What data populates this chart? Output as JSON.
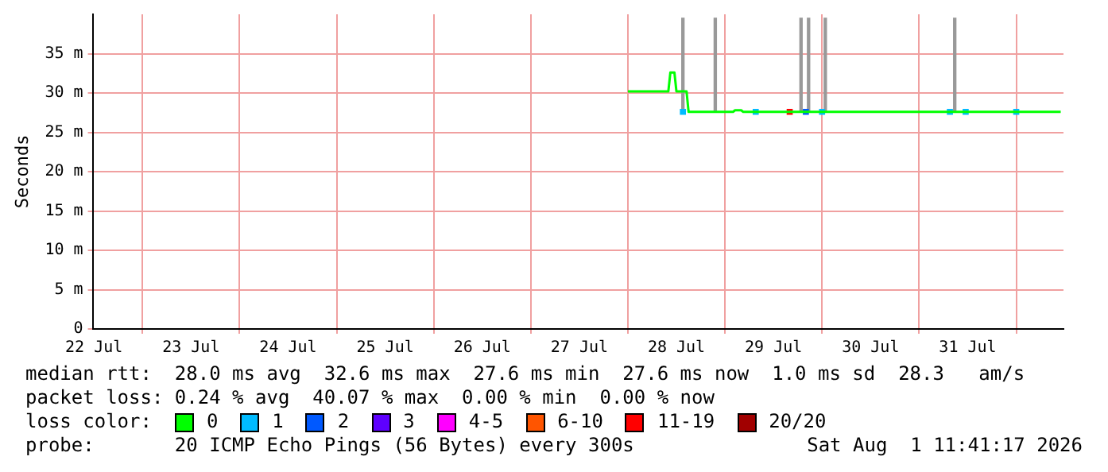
{
  "chart_data": {
    "type": "line",
    "ylabel": "Seconds",
    "legend_title": "loss color:",
    "legend": "bottom",
    "grid": true,
    "annotations": [
      "median rtt:  28.0 ms avg  32.6 ms max  27.6 ms min  27.6 ms now  1.0 ms sd  28.3   am/s",
      "packet loss: 0.24 % avg  40.07 % max  0.00 % min  0.00 % now",
      "probe:       20 ICMP Echo Pings (56 Bytes) every 300s",
      "Sat Aug  1 11:41:17 2026"
    ],
    "xlim": [
      "2026-07-22T11:41",
      "2026-08-01T11:41"
    ],
    "xticks": [
      {
        "value": "2026-07-22T12:00",
        "label": "22 Jul"
      },
      {
        "value": "2026-07-23T12:00",
        "label": "23 Jul"
      },
      {
        "value": "2026-07-24T12:00",
        "label": "24 Jul"
      },
      {
        "value": "2026-07-25T12:00",
        "label": "25 Jul"
      },
      {
        "value": "2026-07-26T12:00",
        "label": "26 Jul"
      },
      {
        "value": "2026-07-27T12:00",
        "label": "27 Jul"
      },
      {
        "value": "2026-07-28T12:00",
        "label": "28 Jul"
      },
      {
        "value": "2026-07-29T12:00",
        "label": "29 Jul"
      },
      {
        "value": "2026-07-30T12:00",
        "label": "30 Jul"
      },
      {
        "value": "2026-07-31T12:00",
        "label": "31 Jul"
      }
    ],
    "ylim": [
      0,
      40
    ],
    "yticks": [
      0,
      {
        "value": 5,
        "label": "5 m"
      },
      {
        "value": 10,
        "label": "10 m"
      },
      {
        "value": 15,
        "label": "15 m"
      },
      {
        "value": 20,
        "label": "20 m"
      },
      {
        "value": 25,
        "label": "25 m"
      },
      {
        "value": 30,
        "label": "30 m"
      },
      {
        "value": 35,
        "label": "35 m"
      }
    ],
    "series": [
      {
        "type": "bar",
        "color": "#999999",
        "x": [
          "2026-07-28T13:36",
          "2026-07-28T21:36",
          "2026-07-29T18:48",
          "2026-07-29T20:40",
          "2026-07-30T00:48",
          "2026-07-31T08:48"
        ],
        "base": [
          27.6,
          27.6,
          27.6,
          27.6,
          27.6,
          27.6
        ],
        "values": [
          11.9,
          11.9,
          11.9,
          11.9,
          11.9,
          11.9
        ]
      },
      {
        "name": "0",
        "color": "#00ff00",
        "marker": "none",
        "x": [
          "2026-07-28T00:00",
          "2026-07-28T10:00",
          "2026-07-28T10:30",
          "2026-07-28T11:30",
          "2026-07-28T12:00",
          "2026-07-28T14:30",
          "2026-07-28T15:00",
          "2026-07-29T02:00",
          "2026-07-29T02:30",
          "2026-07-29T04:00",
          "2026-07-29T04:30",
          "2026-08-01T11:00"
        ],
        "values": [
          30.2,
          30.2,
          32.6,
          32.6,
          30.2,
          30.2,
          27.6,
          27.6,
          27.8,
          27.8,
          27.6,
          27.6
        ]
      },
      {
        "name": "1",
        "color": "#00bbff",
        "type": "scatter",
        "marker": "square",
        "x": [
          "2026-07-28T13:36",
          "2026-07-29T07:36",
          "2026-07-30T00:00",
          "2026-07-31T07:36",
          "2026-07-31T11:30",
          "2026-08-01T00:00"
        ],
        "values": [
          27.6,
          27.6,
          27.6,
          27.6,
          27.6,
          27.6
        ]
      },
      {
        "name": "2",
        "color": "#0059ff",
        "type": "scatter",
        "marker": "square",
        "x": [
          "2026-07-29T20:00"
        ],
        "values": [
          27.6
        ]
      },
      {
        "name": "3",
        "color": "#5e00ff"
      },
      {
        "name": "4-5",
        "color": "#ff00ff"
      },
      {
        "name": "6-10",
        "color": "#ff5500"
      },
      {
        "name": "11-19",
        "color": "#ff0000",
        "type": "scatter",
        "marker": "square",
        "x": [
          "2026-07-29T16:00"
        ],
        "values": [
          27.6
        ]
      },
      {
        "name": "20/20",
        "color": "#a10000"
      }
    ]
  }
}
